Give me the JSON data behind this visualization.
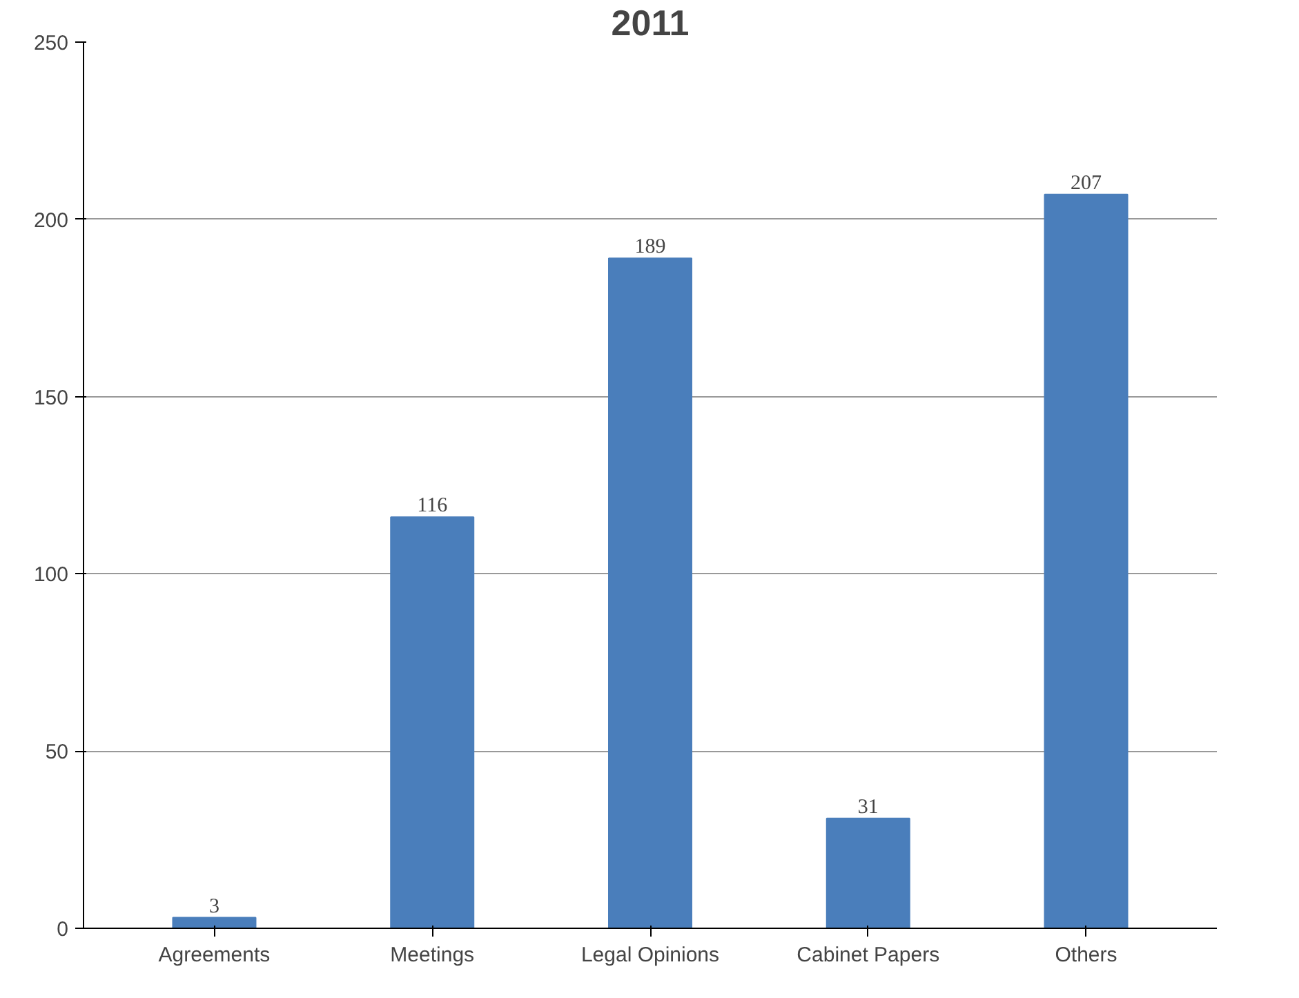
{
  "chart_data": {
    "type": "bar",
    "title": "2011",
    "categories": [
      "Agreements",
      "Meetings",
      "Legal Opinions",
      "Cabinet Papers",
      "Others"
    ],
    "values": [
      3,
      116,
      189,
      31,
      207
    ],
    "color": "#4a7ebb",
    "ylim": [
      0,
      250
    ],
    "yticks": [
      0,
      50,
      100,
      150,
      200,
      250
    ],
    "grid": "y",
    "data_labels": true
  }
}
